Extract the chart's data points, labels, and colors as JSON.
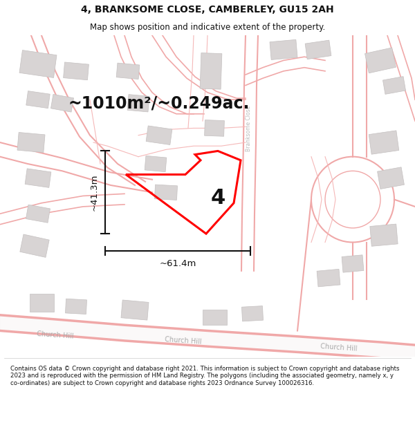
{
  "title": "4, BRANKSOME CLOSE, CAMBERLEY, GU15 2AH",
  "subtitle": "Map shows position and indicative extent of the property.",
  "area_text": "~1010m²/~0.249ac.",
  "label_number": "4",
  "dim_width": "~61.4m",
  "dim_height": "~41.3m",
  "footer": "Contains OS data © Crown copyright and database right 2021. This information is subject to Crown copyright and database rights 2023 and is reproduced with the permission of HM Land Registry. The polygons (including the associated geometry, namely x, y co-ordinates) are subject to Crown copyright and database rights 2023 Ordnance Survey 100026316.",
  "map_bg": "#ffffff",
  "road_line_color": "#f0a8a8",
  "road_fill_color": "#f5eeee",
  "building_fill": "#d8d4d4",
  "building_edge": "#c4c0c0",
  "boundary_color": "#ff0000",
  "dim_color": "#111111",
  "text_color": "#111111",
  "road_label_color": "#aaaaaa",
  "footer_color": "#111111"
}
